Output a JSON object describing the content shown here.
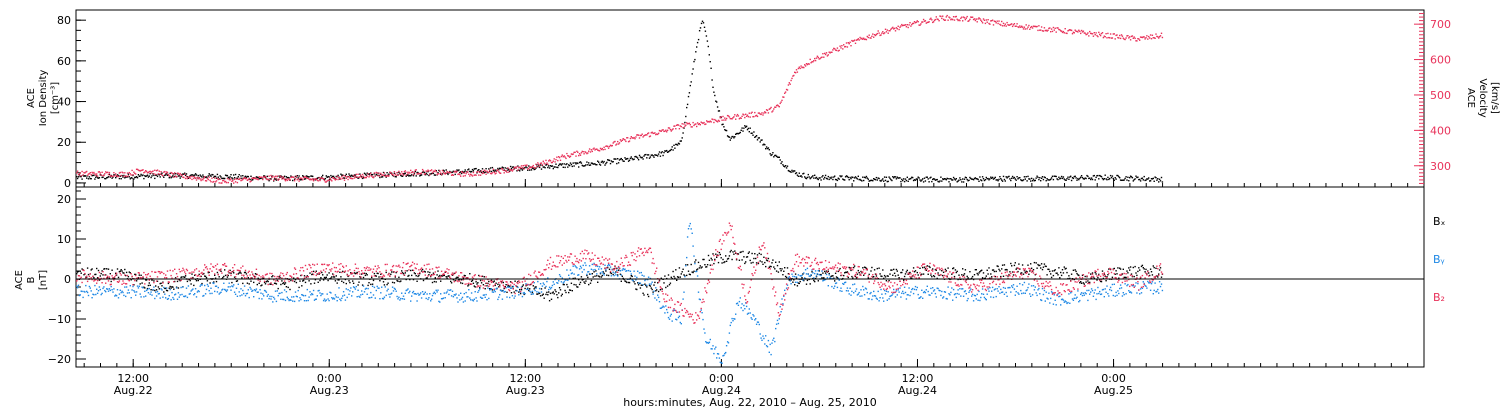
{
  "chart_data": [
    {
      "type": "scatter",
      "panel": "top",
      "y_left_label": [
        "ACE",
        "Ion Density",
        "[cm⁻³]"
      ],
      "y_right_label": [
        "ACE",
        "Velocity",
        "[km/s]"
      ],
      "y_left_ticks": [
        "0",
        "20",
        "40",
        "60",
        "80"
      ],
      "y_right_ticks": [
        "300",
        "400",
        "500",
        "600",
        "700"
      ],
      "ylim_left": [
        -2,
        85
      ],
      "ylim_right": [
        240,
        740
      ],
      "series": [
        {
          "color": "#000000",
          "axis": "left",
          "points": [
            [
              0,
              3
            ],
            [
              6,
              3.5
            ],
            [
              12,
              4
            ],
            [
              18,
              3.5
            ],
            [
              24,
              2.5
            ],
            [
              30,
              3
            ],
            [
              36,
              4
            ],
            [
              42,
              5
            ],
            [
              48,
              6
            ],
            [
              52,
              7
            ],
            [
              56,
              8
            ],
            [
              60,
              9
            ],
            [
              64,
              10
            ],
            [
              68,
              12
            ],
            [
              72,
              15
            ],
            [
              74,
              20
            ],
            [
              75,
              45
            ],
            [
              76,
              70
            ],
            [
              76.6,
              80
            ],
            [
              77.2,
              70
            ],
            [
              78,
              45
            ],
            [
              79,
              30
            ],
            [
              80,
              22
            ],
            [
              81,
              25
            ],
            [
              82,
              28
            ],
            [
              83,
              24
            ],
            [
              84,
              20
            ],
            [
              85,
              15
            ],
            [
              86,
              12
            ],
            [
              87,
              8
            ],
            [
              88,
              5
            ],
            [
              89,
              4
            ],
            [
              90,
              3
            ],
            [
              96,
              2.5
            ],
            [
              102,
              2
            ],
            [
              108,
              2
            ],
            [
              114,
              2.5
            ],
            [
              120,
              2.5
            ],
            [
              126,
              3
            ],
            [
              130,
              2.5
            ],
            [
              133,
              2
            ]
          ]
        },
        {
          "color": "#e8325a",
          "axis": "right",
          "points": [
            [
              0,
              280
            ],
            [
              6,
              278
            ],
            [
              8,
              290
            ],
            [
              12,
              275
            ],
            [
              18,
              258
            ],
            [
              24,
              268
            ],
            [
              30,
              262
            ],
            [
              36,
              275
            ],
            [
              42,
              285
            ],
            [
              48,
              278
            ],
            [
              52,
              288
            ],
            [
              56,
              300
            ],
            [
              60,
              330
            ],
            [
              64,
              350
            ],
            [
              68,
              380
            ],
            [
              72,
              400
            ],
            [
              74,
              415
            ],
            [
              76,
              420
            ],
            [
              78,
              430
            ],
            [
              80,
              438
            ],
            [
              84,
              450
            ],
            [
              86,
              470
            ],
            [
              87,
              520
            ],
            [
              88,
              570
            ],
            [
              90,
              600
            ],
            [
              92,
              620
            ],
            [
              95,
              650
            ],
            [
              98,
              675
            ],
            [
              102,
              700
            ],
            [
              106,
              720
            ],
            [
              110,
              715
            ],
            [
              114,
              700
            ],
            [
              118,
              690
            ],
            [
              122,
              680
            ],
            [
              126,
              670
            ],
            [
              130,
              660
            ],
            [
              133,
              670
            ]
          ]
        }
      ]
    },
    {
      "type": "scatter",
      "panel": "bottom",
      "y_left_label": [
        "ACE",
        "B",
        "[nT]"
      ],
      "y_left_ticks": [
        "−20",
        "−10",
        "0",
        "10",
        "20"
      ],
      "ylim": [
        -22,
        23
      ],
      "legend": [
        {
          "name": "Bₓ",
          "color": "#000000"
        },
        {
          "name": "Bᵧ",
          "color": "#1e88e5"
        },
        {
          "name": "B₂",
          "color": "#e8325a"
        }
      ],
      "series": [
        {
          "name": "Bₓ",
          "color": "#000000",
          "points": [
            [
              0,
              1.5
            ],
            [
              6,
              1
            ],
            [
              10,
              -2
            ],
            [
              14,
              0
            ],
            [
              18,
              1
            ],
            [
              22,
              0
            ],
            [
              26,
              -1
            ],
            [
              30,
              1
            ],
            [
              36,
              0
            ],
            [
              42,
              1
            ],
            [
              48,
              0
            ],
            [
              54,
              -2
            ],
            [
              58,
              -4
            ],
            [
              62,
              0
            ],
            [
              66,
              2
            ],
            [
              70,
              -3
            ],
            [
              74,
              2
            ],
            [
              78,
              5
            ],
            [
              80,
              6
            ],
            [
              84,
              5
            ],
            [
              86,
              3
            ],
            [
              88,
              0
            ],
            [
              92,
              1
            ],
            [
              96,
              2
            ],
            [
              100,
              1
            ],
            [
              104,
              2
            ],
            [
              110,
              1
            ],
            [
              116,
              3
            ],
            [
              120,
              2
            ],
            [
              124,
              0
            ],
            [
              128,
              2
            ],
            [
              133,
              2
            ]
          ]
        },
        {
          "name": "Bᵧ",
          "color": "#1e88e5",
          "points": [
            [
              0,
              -3
            ],
            [
              6,
              -3
            ],
            [
              12,
              -3.5
            ],
            [
              18,
              -2
            ],
            [
              24,
              -4
            ],
            [
              30,
              -4
            ],
            [
              36,
              -3
            ],
            [
              42,
              -4
            ],
            [
              48,
              -4
            ],
            [
              54,
              -3
            ],
            [
              58,
              -1
            ],
            [
              62,
              3
            ],
            [
              66,
              2
            ],
            [
              70,
              0
            ],
            [
              72,
              -8
            ],
            [
              74,
              -10
            ],
            [
              75,
              15
            ],
            [
              77,
              -15
            ],
            [
              79,
              -20
            ],
            [
              81,
              -5
            ],
            [
              83,
              -10
            ],
            [
              85,
              -18
            ],
            [
              87,
              0
            ],
            [
              90,
              2
            ],
            [
              94,
              -2
            ],
            [
              98,
              -4
            ],
            [
              104,
              -3
            ],
            [
              110,
              -4
            ],
            [
              116,
              -2
            ],
            [
              120,
              -5
            ],
            [
              126,
              -3
            ],
            [
              130,
              -2
            ],
            [
              133,
              -2
            ]
          ]
        },
        {
          "name": "B₂",
          "color": "#e8325a",
          "points": [
            [
              0,
              1
            ],
            [
              6,
              0
            ],
            [
              12,
              1
            ],
            [
              18,
              3
            ],
            [
              24,
              0
            ],
            [
              30,
              3
            ],
            [
              36,
              2
            ],
            [
              42,
              3
            ],
            [
              48,
              0
            ],
            [
              54,
              -2
            ],
            [
              58,
              4
            ],
            [
              62,
              6
            ],
            [
              66,
              3
            ],
            [
              70,
              8
            ],
            [
              72,
              -5
            ],
            [
              76,
              -10
            ],
            [
              78,
              5
            ],
            [
              80,
              14
            ],
            [
              82,
              -5
            ],
            [
              84,
              10
            ],
            [
              86,
              -8
            ],
            [
              88,
              5
            ],
            [
              92,
              3
            ],
            [
              96,
              2
            ],
            [
              100,
              -2
            ],
            [
              104,
              3
            ],
            [
              110,
              -2
            ],
            [
              116,
              2
            ],
            [
              120,
              -3
            ],
            [
              126,
              2
            ],
            [
              130,
              -1
            ],
            [
              133,
              3
            ]
          ]
        }
      ]
    }
  ],
  "x_axis": {
    "ticks": [
      {
        "time": "12:00",
        "date": "Aug.22"
      },
      {
        "time": "0:00",
        "date": "Aug.23"
      },
      {
        "time": "12:00",
        "date": "Aug.23"
      },
      {
        "time": "0:00",
        "date": "Aug.24"
      },
      {
        "time": "12:00",
        "date": "Aug.24"
      },
      {
        "time": "0:00",
        "date": "Aug.25"
      }
    ],
    "label": "hours:minutes, Aug. 22, 2010 – Aug. 25, 2010"
  }
}
